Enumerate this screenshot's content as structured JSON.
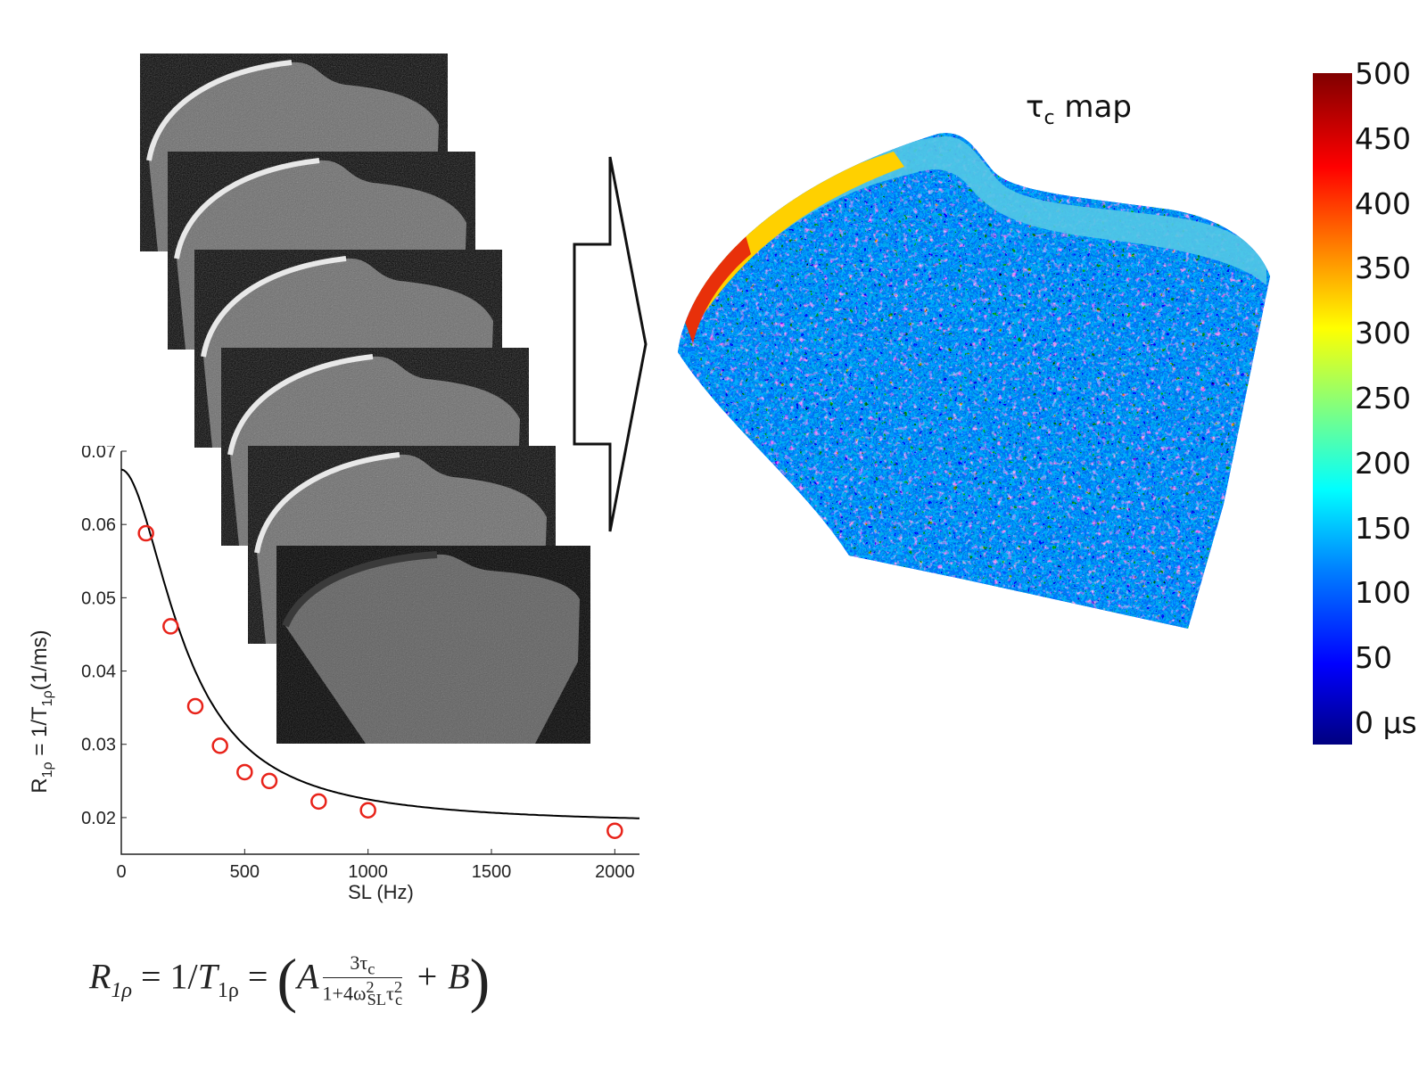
{
  "map": {
    "title_symbol": "τ",
    "title_sub": "c",
    "title_rest": " map"
  },
  "colorbar": {
    "ticks": [
      "500",
      "450",
      "400",
      "350",
      "300",
      "250",
      "200",
      "150",
      "100",
      "50",
      "0 µs"
    ],
    "colors": [
      "#000080",
      "#0000ff",
      "#00ffff",
      "#ffff00",
      "#ff0000",
      "#800000"
    ]
  },
  "chart_data": {
    "type": "scatter",
    "ylabel": "R1ρ = 1/T1ρ(1/ms)",
    "ylabel_main": "R",
    "ylabel_sub": "1ρ",
    "ylabel_mid": " = 1/T",
    "ylabel_sub2": "1ρ",
    "ylabel_end": "(1/ms)",
    "xlabel": "SL (Hz)",
    "xlim": [
      0,
      2100
    ],
    "ylim": [
      0.015,
      0.07
    ],
    "xticks": [
      "0",
      "500",
      "1000",
      "1500",
      "2000"
    ],
    "yticks": [
      "0.02",
      "0.03",
      "0.04",
      "0.05",
      "0.06",
      "0.07"
    ],
    "points": {
      "x": [
        100,
        200,
        300,
        400,
        500,
        600,
        800,
        1000,
        2000
      ],
      "y": [
        0.0588,
        0.0461,
        0.0352,
        0.0298,
        0.0262,
        0.025,
        0.0222,
        0.021,
        0.0182
      ],
      "color": "#e8231a"
    },
    "fit": {
      "A": 0.0485,
      "B": 0.019,
      "tau_ms": 0.00075,
      "color": "#000000"
    }
  },
  "formula": {
    "lhs": "R",
    "lhs_sub": "1ρ",
    "eq1": " = 1/",
    "t": "T",
    "t_sub": "1ρ",
    "eq2": " = ",
    "lparen": "(",
    "a": "A",
    "num": "3τ",
    "num_sub": "c",
    "den": "1+4ω",
    "den_sup": "2",
    "den_sub": "SL",
    "den_tau": "τ",
    "den_tau_sup": "2",
    "den_tau_sub": "c",
    "plus_b": " + B",
    "rparen": ")"
  }
}
